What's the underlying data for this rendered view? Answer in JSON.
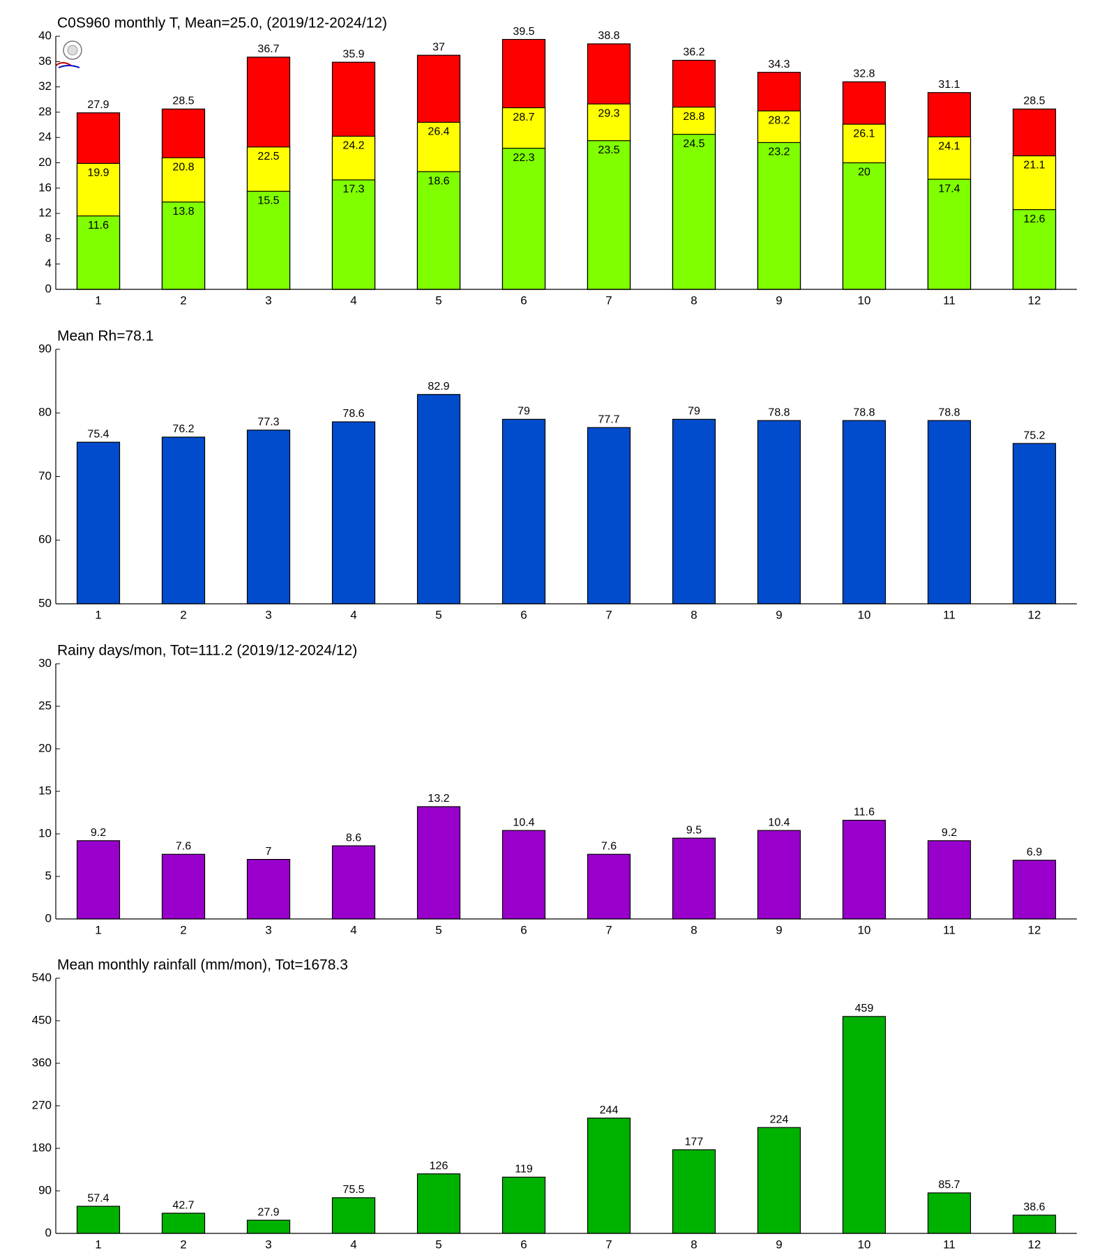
{
  "chart_data": [
    {
      "type": "bar",
      "title": "C0S960 monthly T, Mean=25.0, (2019/12-2024/12)",
      "categories": [
        "1",
        "2",
        "3",
        "4",
        "5",
        "6",
        "7",
        "8",
        "9",
        "10",
        "11",
        "12"
      ],
      "series": [
        {
          "color": "#ff0000",
          "values": [
            27.9,
            28.5,
            36.7,
            35.9,
            37,
            39.5,
            38.8,
            36.2,
            34.3,
            32.8,
            31.1,
            28.5
          ]
        },
        {
          "color": "#ffff00",
          "values": [
            19.9,
            20.8,
            22.5,
            24.2,
            26.4,
            28.7,
            29.3,
            28.8,
            28.2,
            26.1,
            24.1,
            21.1
          ]
        },
        {
          "color": "#80ff00",
          "values": [
            11.6,
            13.8,
            15.5,
            17.3,
            18.6,
            22.3,
            23.5,
            24.5,
            23.2,
            20,
            17.4,
            12.6
          ]
        }
      ],
      "ylim": [
        0,
        40
      ],
      "yticks": [
        0,
        4,
        8,
        12,
        16,
        20,
        24,
        28,
        32,
        36,
        40
      ]
    },
    {
      "type": "bar",
      "title": "Mean Rh=78.1",
      "categories": [
        "1",
        "2",
        "3",
        "4",
        "5",
        "6",
        "7",
        "8",
        "9",
        "10",
        "11",
        "12"
      ],
      "series": [
        {
          "color": "#004ccc",
          "values": [
            75.4,
            76.2,
            77.3,
            78.6,
            82.9,
            79,
            77.7,
            79,
            78.8,
            78.8,
            78.8,
            75.2
          ]
        }
      ],
      "ylim": [
        50,
        90
      ],
      "yticks": [
        50,
        60,
        70,
        80,
        90
      ]
    },
    {
      "type": "bar",
      "title": "Rainy days/mon, Tot=111.2 (2019/12-2024/12)",
      "categories": [
        "1",
        "2",
        "3",
        "4",
        "5",
        "6",
        "7",
        "8",
        "9",
        "10",
        "11",
        "12"
      ],
      "series": [
        {
          "color": "#9900cc",
          "values": [
            9.2,
            7.6,
            7,
            8.6,
            13.2,
            10.4,
            7.6,
            9.5,
            10.4,
            11.6,
            9.2,
            6.9
          ]
        }
      ],
      "ylim": [
        0,
        30
      ],
      "yticks": [
        0,
        5,
        10,
        15,
        20,
        25,
        30
      ]
    },
    {
      "type": "bar",
      "title": "Mean monthly rainfall (mm/mon), Tot=1678.3",
      "categories": [
        "1",
        "2",
        "3",
        "4",
        "5",
        "6",
        "7",
        "8",
        "9",
        "10",
        "11",
        "12"
      ],
      "series": [
        {
          "color": "#00b200",
          "values": [
            57.4,
            42.7,
            27.9,
            75.5,
            126,
            119,
            244,
            177,
            224,
            459,
            85.7,
            38.6
          ]
        }
      ],
      "ylim": [
        0,
        540
      ],
      "yticks": [
        0,
        90,
        180,
        270,
        360,
        450,
        540
      ]
    }
  ]
}
